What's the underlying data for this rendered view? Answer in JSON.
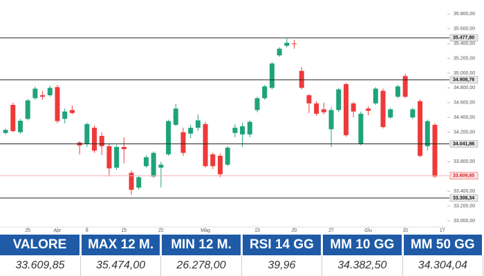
{
  "chart_data": {
    "type": "candlestick",
    "up_color": "#1fa37a",
    "down_color": "#ee3a3a",
    "x": [
      0,
      1,
      2,
      3,
      4,
      5,
      6,
      7,
      8,
      9,
      10,
      11,
      12,
      13,
      14,
      15,
      16,
      17,
      18,
      19,
      20,
      21,
      22,
      23,
      24,
      25,
      26,
      27,
      28,
      29,
      30,
      31,
      32,
      33,
      34,
      35,
      36,
      37,
      38,
      39,
      40,
      41,
      42,
      43,
      44,
      45,
      46,
      47,
      48,
      49,
      50,
      51,
      52,
      53,
      54,
      55,
      56,
      57,
      58
    ],
    "open": [
      34190,
      34570,
      34200,
      34380,
      34660,
      34700,
      34700,
      34810,
      34380,
      34500,
      34060,
      34040,
      34260,
      34150,
      34010,
      33720,
      34000,
      33650,
      33450,
      33740,
      33600,
      33720,
      33900,
      34300,
      34200,
      34180,
      34260,
      34310,
      33900,
      33880,
      33760,
      34190,
      34170,
      34170,
      34500,
      34660,
      34800,
      35240,
      35370,
      35400,
      35030,
      34700,
      34590,
      34510,
      34240,
      34500,
      34850,
      34590,
      34040,
      34520,
      34590,
      34760,
      34400,
      34680,
      34960,
      34400,
      34620,
      34010,
      34300
    ],
    "high": [
      34250,
      34600,
      34380,
      34650,
      34820,
      34760,
      34830,
      34840,
      34520,
      34560,
      34080,
      34330,
      34290,
      34200,
      34040,
      34030,
      34130,
      33680,
      33610,
      33890,
      33940,
      33800,
      34370,
      34580,
      34260,
      34300,
      34440,
      34340,
      33920,
      33910,
      34010,
      34310,
      34330,
      34360,
      34680,
      34840,
      35150,
      35350,
      35470,
      35450,
      35080,
      34720,
      34620,
      34600,
      34540,
      34800,
      34870,
      34610,
      34480,
      34550,
      34810,
      34790,
      34530,
      34840,
      34990,
      34530,
      34640,
      34370,
      34320
    ],
    "low": [
      34170,
      34200,
      34180,
      34360,
      34640,
      34640,
      34680,
      34320,
      34320,
      34440,
      33900,
      34000,
      33920,
      33890,
      33600,
      33690,
      33780,
      33350,
      33420,
      33720,
      33580,
      33450,
      33880,
      34280,
      33880,
      34120,
      34220,
      33720,
      33700,
      33590,
      33740,
      34130,
      34000,
      34130,
      34470,
      34640,
      34780,
      35220,
      35350,
      35330,
      34780,
      34460,
      34420,
      34440,
      34000,
      34470,
      34140,
      34400,
      34020,
      34430,
      34570,
      34250,
      34380,
      34660,
      34660,
      34380,
      33860,
      33950,
      33580
    ],
    "close": [
      34230,
      34215,
      34355,
      34630,
      34790,
      34680,
      34800,
      34350,
      34480,
      34460,
      34020,
      34310,
      33950,
      34010,
      33710,
      34000,
      33970,
      33420,
      33590,
      33860,
      33920,
      33760,
      34350,
      34520,
      33920,
      34260,
      34360,
      33740,
      33740,
      33630,
      33990,
      34260,
      34280,
      34340,
      34660,
      34820,
      35130,
      35330,
      35410,
      35395,
      34800,
      34590,
      34450,
      34470,
      34500,
      34780,
      34160,
      34480,
      34450,
      34490,
      34790,
      34270,
      34510,
      34820,
      34680,
      34510,
      33880,
      34350,
      33600
    ],
    "xlim": [
      -0.75,
      59.5
    ],
    "xticks": [
      {
        "value": 3,
        "label": "25"
      },
      {
        "value": 7,
        "label": "Apr"
      },
      {
        "value": 11,
        "label": "8"
      },
      {
        "value": 16,
        "label": "15"
      },
      {
        "value": 21,
        "label": "22"
      },
      {
        "value": 27,
        "label": "Mag"
      },
      {
        "value": 34,
        "label": "13"
      },
      {
        "value": 39,
        "label": "20"
      },
      {
        "value": 44,
        "label": "27"
      },
      {
        "value": 49,
        "label": "Giu"
      },
      {
        "value": 54,
        "label": "10"
      },
      {
        "value": 59,
        "label": "17"
      }
    ],
    "ylim": [
      32860,
      35990
    ],
    "yticks": [
      {
        "value": 33000,
        "label": "33.000,00"
      },
      {
        "value": 33200,
        "label": "33.200,00"
      },
      {
        "value": 33400,
        "label": "33.400,00"
      },
      {
        "value": 33800,
        "label": "33.800,00"
      },
      {
        "value": 34200,
        "label": "34.200,00"
      },
      {
        "value": 34400,
        "label": "34.400,00"
      },
      {
        "value": 34600,
        "label": "34.600,00"
      },
      {
        "value": 34800,
        "label": "34.800,00"
      },
      {
        "value": 35000,
        "label": "35.000,00"
      },
      {
        "value": 35200,
        "label": "35.200,00"
      },
      {
        "value": 35400,
        "label": "35.400,00"
      },
      {
        "value": 35600,
        "label": "35.600,00"
      },
      {
        "value": 35800,
        "label": "35.800,00"
      }
    ],
    "levels": [
      {
        "value": 35477.8,
        "label": "35.477,80"
      },
      {
        "value": 34908.76,
        "label": "34.908,76"
      },
      {
        "value": 34041.86,
        "label": "34.041,86"
      },
      {
        "value": 33308.34,
        "label": "33.308,34"
      }
    ],
    "last_price": {
      "value": 33609.85,
      "label": "33.609,85"
    }
  },
  "table": {
    "headers": [
      "VALORE",
      "MAX 12 M.",
      "MIN 12 M.",
      "RSI 14 GG",
      "MM 10 GG",
      "MM 50 GG"
    ],
    "rows": [
      [
        "33.609,85",
        "35.474,00",
        "26.278,00",
        "39,96",
        "34.382,50",
        "34.304,04"
      ]
    ]
  }
}
